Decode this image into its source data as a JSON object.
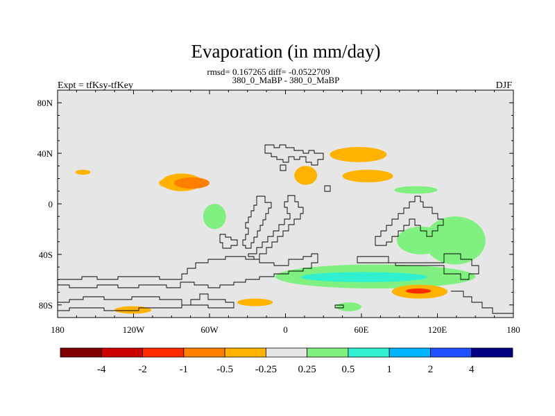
{
  "title": "Evaporation (in mm/day)",
  "stats_line": "rmsd= 0.167265 diff= -0.0522709",
  "comparison_line": "380_0_MaBP - 380_0_MaBP",
  "experiment_label": "Expt = tfKsy-tfKey",
  "season_label": "DJF",
  "map": {
    "projection": "cylindrical equidistant",
    "lon_range": [
      -180,
      180
    ],
    "lat_range": [
      -90,
      90
    ],
    "background_color": "#e6e6e6",
    "coastline_color": "#000000",
    "lon_ticks": [
      {
        "value": -180,
        "label": "180"
      },
      {
        "value": -120,
        "label": "120W"
      },
      {
        "value": -60,
        "label": "60W"
      },
      {
        "value": 0,
        "label": "0"
      },
      {
        "value": 60,
        "label": "60E"
      },
      {
        "value": 120,
        "label": "120E"
      },
      {
        "value": 180,
        "label": "180"
      }
    ],
    "lat_ticks": [
      {
        "value": 80,
        "label": "80N"
      },
      {
        "value": 40,
        "label": "40N"
      },
      {
        "value": 0,
        "label": "0"
      },
      {
        "value": -40,
        "label": "40S"
      },
      {
        "value": -80,
        "label": "80S"
      }
    ]
  },
  "colorbar": {
    "colors": [
      "#800000",
      "#cc0000",
      "#ff2a00",
      "#ff7f00",
      "#ffb300",
      "#e6e6e6",
      "#80f080",
      "#30f0d0",
      "#00b4ff",
      "#1e50ff",
      "#000080"
    ],
    "labels": [
      "-4",
      "-2",
      "-1",
      "-0.5",
      "-0.25",
      "0.25",
      "0.5",
      "1",
      "2",
      "4"
    ]
  },
  "chart_data": {
    "type": "heatmap",
    "title": "Evaporation (in mm/day)",
    "subtitle": "380_0_MaBP - 380_0_MaBP",
    "units": "mm/day",
    "statistics": {
      "rmsd": 0.167265,
      "diff": -0.0522709
    },
    "season": "DJF",
    "x_range": [
      -180,
      180
    ],
    "y_range": [
      -90,
      90
    ],
    "contour_levels": [
      -4,
      -2,
      -1,
      -0.5,
      -0.25,
      0.25,
      0.5,
      1,
      2,
      4
    ],
    "anomaly_regions": [
      {
        "lon": [
          -166,
          -154
        ],
        "lat": [
          23,
          27
        ],
        "value": -0.3
      },
      {
        "lon": [
          -100,
          -73
        ],
        "lat": [
          12,
          21
        ],
        "value": -0.35
      },
      {
        "lon": [
          -98,
          -66
        ],
        "lat": [
          10,
          24
        ],
        "value": -0.5
      },
      {
        "lon": [
          -88,
          -60
        ],
        "lat": [
          12,
          21
        ],
        "value": -0.75
      },
      {
        "lon": [
          7,
          25
        ],
        "lat": [
          15,
          30
        ],
        "value": -0.35
      },
      {
        "lon": [
          35,
          80
        ],
        "lat": [
          33,
          45
        ],
        "value": -0.3
      },
      {
        "lon": [
          45,
          85
        ],
        "lat": [
          17,
          27
        ],
        "value": -0.3
      },
      {
        "lon": [
          86,
          120
        ],
        "lat": [
          8,
          14
        ],
        "value": 0.3
      },
      {
        "lon": [
          -65,
          -47
        ],
        "lat": [
          -20,
          0
        ],
        "value": 0.35
      },
      {
        "lon": [
          88,
          126
        ],
        "lat": [
          -40,
          -18
        ],
        "value": 0.35
      },
      {
        "lon": [
          -8,
          150
        ],
        "lat": [
          -67,
          -48
        ],
        "value": 0.35
      },
      {
        "lon": [
          12,
          112
        ],
        "lat": [
          -62,
          -54
        ],
        "value": 0.6
      },
      {
        "lon": [
          110,
          158
        ],
        "lat": [
          -48,
          -10
        ],
        "value": 0.3
      },
      {
        "lon": [
          84,
          128
        ],
        "lat": [
          -75,
          -64
        ],
        "value": -0.35
      },
      {
        "lon": [
          95,
          115
        ],
        "lat": [
          -71,
          -67
        ],
        "value": -1.5
      },
      {
        "lon": [
          -135,
          -106
        ],
        "lat": [
          -87,
          -81
        ],
        "value": -0.35
      },
      {
        "lon": [
          -38,
          -10
        ],
        "lat": [
          -81,
          -75
        ],
        "value": -0.35
      },
      {
        "lon": [
          40,
          60
        ],
        "lat": [
          -85,
          -78
        ],
        "value": 0.3
      }
    ]
  }
}
